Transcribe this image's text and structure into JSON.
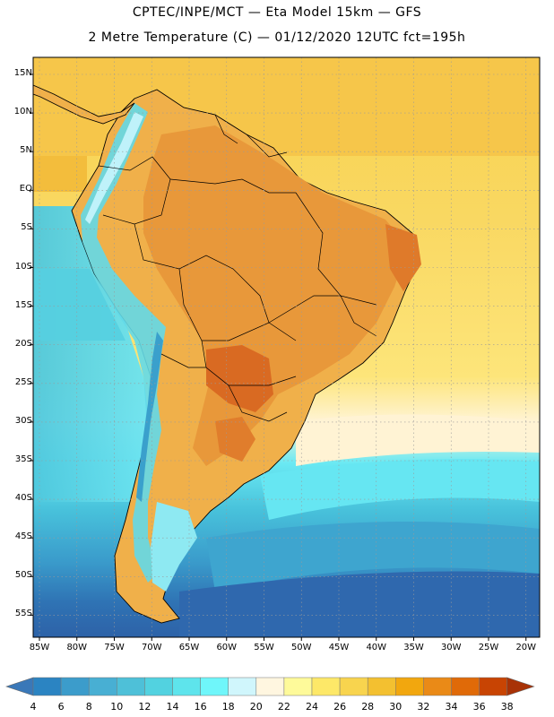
{
  "header": {
    "line1": "CPTEC/INPE/MCT —   Eta Model 15km — GFS",
    "line2": "2 Metre Temperature (C) — 01/12/2020 12UTC fct=195h"
  },
  "axes": {
    "lat_labels": [
      "15N",
      "10N",
      "5N",
      "EQ",
      "5S",
      "10S",
      "15S",
      "20S",
      "25S",
      "30S",
      "35S",
      "40S",
      "45S",
      "50S",
      "55S"
    ],
    "lon_labels": [
      "85W",
      "80W",
      "75W",
      "70W",
      "65W",
      "60W",
      "55W",
      "50W",
      "45W",
      "40W",
      "35W",
      "30W",
      "25W",
      "20W"
    ]
  },
  "colorbar": {
    "labels": [
      "4",
      "6",
      "8",
      "10",
      "12",
      "14",
      "16",
      "18",
      "20",
      "22",
      "24",
      "26",
      "28",
      "30",
      "32",
      "34",
      "36",
      "38"
    ],
    "colors": [
      "#3a78b8",
      "#2b84c2",
      "#3c9ccb",
      "#48afd3",
      "#4ec0d8",
      "#52d2e0",
      "#5ee4ec",
      "#6ff6fa",
      "#d0f6fc",
      "#fff6e0",
      "#fefa9a",
      "#fde868",
      "#f8d44e",
      "#f3c030",
      "#f2a70e",
      "#ea8a17",
      "#e06a08",
      "#c84403",
      "#a83206"
    ]
  },
  "legend_colors": {
    "land_hot": "#e59a39",
    "land_warm": "#f0b648",
    "ocean_warm": "#f9d45a",
    "ocean_cool": "#4ec7de",
    "ocean_cold": "#2f6fb0"
  }
}
